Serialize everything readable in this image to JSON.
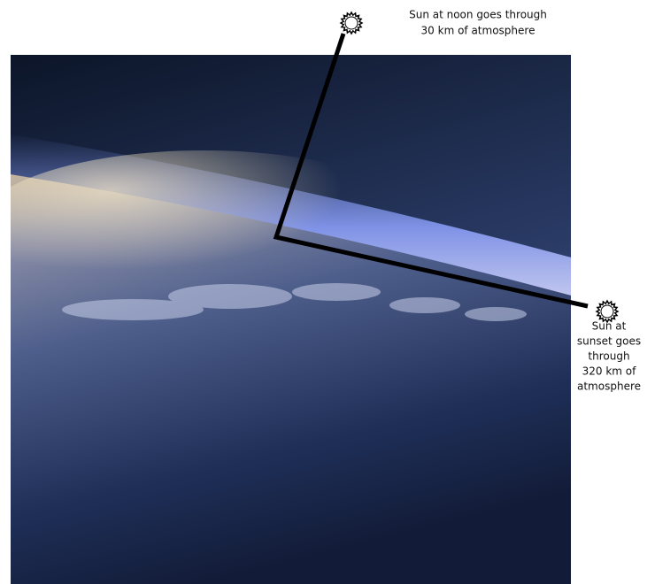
{
  "labels": {
    "noon": {
      "lines": [
        "Sun at noon goes through",
        "30 km of atmosphere"
      ]
    },
    "sunset": {
      "lines": [
        "Sun at",
        "sunset goes",
        "through",
        "320 km of",
        "atmosphere"
      ]
    }
  }
}
